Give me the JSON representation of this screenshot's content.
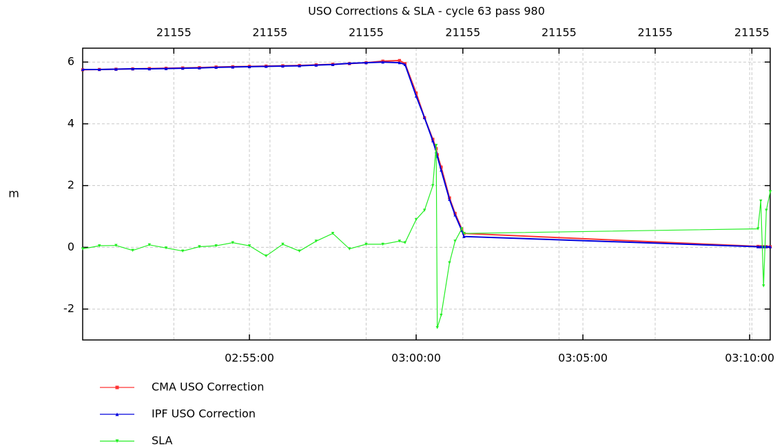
{
  "chart_data": {
    "type": "line",
    "title": "USO Corrections & SLA - cycle 63 pass 980",
    "y_label": "m",
    "x": [
      "02:50:00",
      "02:50:30",
      "02:51:00",
      "02:51:30",
      "02:52:00",
      "02:52:30",
      "02:53:00",
      "02:53:30",
      "02:54:00",
      "02:54:30",
      "02:55:00",
      "02:55:30",
      "02:56:00",
      "02:56:30",
      "02:57:00",
      "02:57:30",
      "02:58:00",
      "02:58:30",
      "02:59:00",
      "02:59:30",
      "02:59:40",
      "03:00:00",
      "03:00:15",
      "03:00:30",
      "03:00:36",
      "03:00:38",
      "03:00:45",
      "03:01:00",
      "03:01:10",
      "03:01:22",
      "03:01:26",
      "03:10:15",
      "03:10:20",
      "03:10:25",
      "03:10:30",
      "03:10:37"
    ],
    "series": [
      {
        "name": "CMA USO Correction",
        "color": "#ff3333",
        "marker": "square",
        "values": [
          5.75,
          5.76,
          5.77,
          5.78,
          5.79,
          5.8,
          5.81,
          5.82,
          5.84,
          5.85,
          5.86,
          5.87,
          5.88,
          5.89,
          5.91,
          5.93,
          5.95,
          5.98,
          6.03,
          6.05,
          5.95,
          5.0,
          4.2,
          3.5,
          3.2,
          3.0,
          2.6,
          1.6,
          1.1,
          0.6,
          0.45,
          0.03,
          0.02,
          0.02,
          0.02,
          0.02
        ]
      },
      {
        "name": "IPF USO Correction",
        "color": "#0000dd",
        "marker": "triangle-up",
        "values": [
          5.76,
          5.76,
          5.77,
          5.78,
          5.78,
          5.79,
          5.8,
          5.81,
          5.83,
          5.84,
          5.85,
          5.86,
          5.87,
          5.88,
          5.9,
          5.92,
          5.96,
          5.98,
          6.0,
          5.98,
          5.92,
          4.9,
          4.2,
          3.45,
          3.1,
          2.95,
          2.5,
          1.55,
          1.05,
          0.55,
          0.35,
          0.02,
          0.02,
          0.02,
          0.02,
          0.02
        ]
      },
      {
        "name": "SLA",
        "color": "#22ee22",
        "marker": "triangle-down",
        "values": [
          -0.05,
          0.05,
          0.06,
          -0.1,
          0.08,
          -0.02,
          -0.12,
          0.02,
          0.05,
          0.15,
          0.05,
          -0.28,
          0.1,
          -0.12,
          0.2,
          0.45,
          -0.05,
          0.1,
          0.1,
          0.2,
          0.15,
          0.9,
          1.2,
          2.0,
          3.3,
          -2.6,
          -2.2,
          -0.5,
          0.2,
          0.6,
          0.45,
          0.6,
          1.5,
          -1.25,
          1.2,
          1.8
        ]
      }
    ],
    "xlim": [
      "02:50:00",
      "03:10:37"
    ],
    "xticks": [
      "02:55:00",
      "03:00:00",
      "03:05:00",
      "03:10:00"
    ],
    "x2ticks": [
      {
        "value": "02:52:44",
        "label": "21155"
      },
      {
        "value": "02:55:37",
        "label": "21155"
      },
      {
        "value": "02:58:30",
        "label": "21155"
      },
      {
        "value": "03:01:24",
        "label": "21155"
      },
      {
        "value": "03:04:17",
        "label": "21155"
      },
      {
        "value": "03:07:10",
        "label": "21155"
      },
      {
        "value": "03:10:04",
        "label": "21155"
      }
    ],
    "ylim": [
      -3,
      6.45
    ],
    "yticks": [
      -2,
      0,
      2,
      4,
      6
    ],
    "grid": true,
    "legend": "bottom"
  }
}
